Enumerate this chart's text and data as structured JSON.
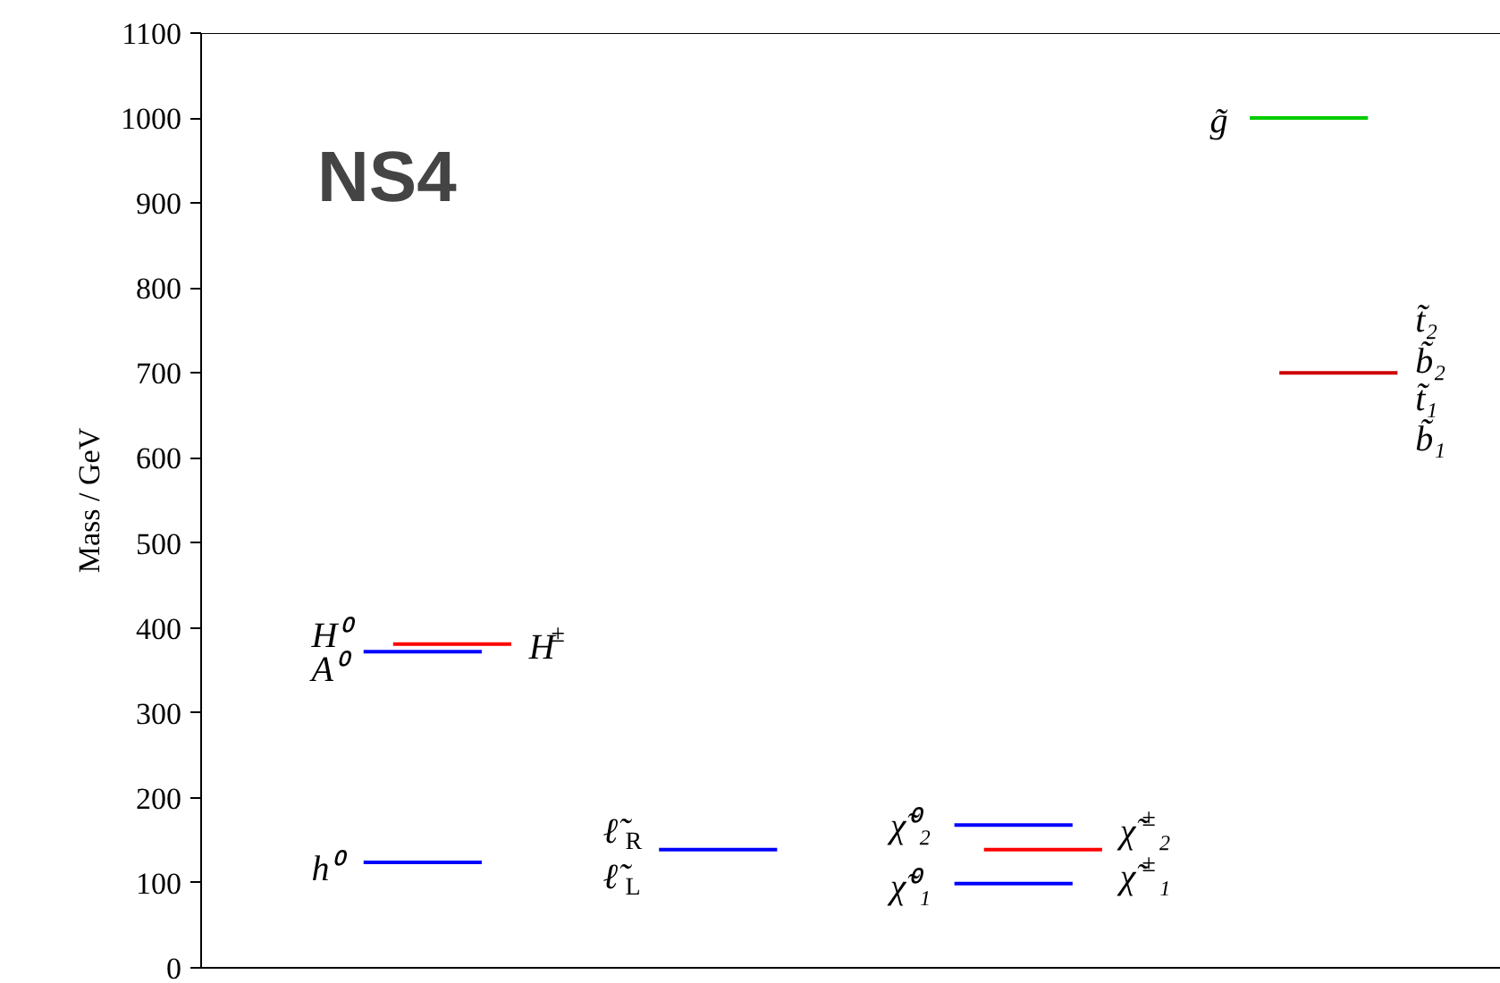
{
  "chart_data": {
    "type": "line",
    "ylabel": "Mass / GeV",
    "ylim": [
      0,
      1100
    ],
    "yticks": [
      0,
      100,
      200,
      300,
      400,
      500,
      600,
      700,
      800,
      900,
      1000,
      1100
    ],
    "grid": false,
    "marker": "none",
    "line_style": "solid",
    "categories": [
      null,
      null,
      null,
      null,
      null,
      null,
      null,
      null,
      null,
      null,
      null,
      null,
      null,
      null,
      null,
      null,
      null,
      null,
      null,
      null,
      null,
      null,
      null,
      null,
      null,
      null,
      null,
      null,
      null,
      null,
      null,
      null,
      null,
      null,
      null,
      null,
      null,
      null,
      null,
      null,
      null,
      null,
      null,
      null
    ],
    "series": [
      {
        "color": "#0000ff",
        "values": [
          null,
          null,
          null,
          null,
          null,
          124,
          124,
          124,
          124,
          124,
          null,
          null,
          null,
          null,
          null,
          null,
          null,
          null,
          null,
          null,
          null,
          null,
          null,
          null,
          null,
          null,
          null,
          null,
          null,
          null,
          null,
          null,
          null,
          null,
          null,
          null,
          null,
          null,
          null,
          null,
          null,
          null,
          null,
          null
        ]
      },
      {
        "color": "#0000ff",
        "values": [
          null,
          null,
          null,
          null,
          null,
          372,
          372,
          372,
          372,
          372,
          null,
          null,
          null,
          null,
          null,
          null,
          null,
          null,
          null,
          null,
          null,
          null,
          null,
          null,
          null,
          null,
          null,
          null,
          null,
          null,
          null,
          null,
          null,
          null,
          null,
          null,
          null,
          null,
          null,
          null,
          null,
          null,
          null,
          null
        ]
      },
      {
        "color": "#ff0000",
        "values": [
          null,
          null,
          null,
          null,
          null,
          null,
          381,
          381,
          381,
          381,
          381,
          null,
          null,
          null,
          null,
          null,
          null,
          null,
          null,
          null,
          null,
          null,
          null,
          null,
          null,
          null,
          null,
          null,
          null,
          null,
          null,
          null,
          null,
          null,
          null,
          null,
          null,
          null,
          null,
          null,
          null,
          null,
          null,
          null
        ]
      },
      {
        "color": "#0000ff",
        "values": [
          null,
          null,
          null,
          null,
          null,
          null,
          null,
          null,
          null,
          null,
          null,
          null,
          null,
          null,
          null,
          139,
          139,
          139,
          139,
          139,
          null,
          null,
          null,
          null,
          null,
          null,
          null,
          null,
          null,
          null,
          null,
          null,
          null,
          null,
          null,
          null,
          null,
          null,
          null,
          null,
          null,
          null,
          null,
          null
        ]
      },
      {
        "color": "#0000ff",
        "values": [
          null,
          null,
          null,
          null,
          null,
          null,
          null,
          null,
          null,
          null,
          null,
          null,
          null,
          null,
          null,
          null,
          null,
          null,
          null,
          null,
          null,
          null,
          null,
          null,
          null,
          168,
          168,
          168,
          168,
          168,
          null,
          null,
          null,
          null,
          null,
          null,
          null,
          null,
          null,
          null,
          null,
          null,
          null,
          null
        ]
      },
      {
        "color": "#0000ff",
        "values": [
          null,
          null,
          null,
          null,
          null,
          null,
          null,
          null,
          null,
          null,
          null,
          null,
          null,
          null,
          null,
          null,
          null,
          null,
          null,
          null,
          null,
          null,
          null,
          null,
          null,
          99,
          99,
          99,
          99,
          99,
          null,
          null,
          null,
          null,
          null,
          null,
          null,
          null,
          null,
          null,
          null,
          null,
          null,
          null
        ]
      },
      {
        "color": "#ff0000",
        "values": [
          null,
          null,
          null,
          null,
          null,
          null,
          null,
          null,
          null,
          null,
          null,
          null,
          null,
          null,
          null,
          null,
          null,
          null,
          null,
          null,
          null,
          null,
          null,
          null,
          null,
          null,
          139,
          139,
          139,
          139,
          139,
          null,
          null,
          null,
          null,
          null,
          null,
          null,
          null,
          null,
          null,
          null,
          null,
          null
        ]
      },
      {
        "color": "#00cc00",
        "values": [
          null,
          null,
          null,
          null,
          null,
          null,
          null,
          null,
          null,
          null,
          null,
          null,
          null,
          null,
          null,
          null,
          null,
          null,
          null,
          null,
          null,
          null,
          null,
          null,
          null,
          null,
          null,
          null,
          null,
          null,
          null,
          null,
          null,
          null,
          null,
          1000,
          1000,
          1000,
          1000,
          1000,
          null,
          null,
          null,
          null
        ]
      },
      {
        "color": "#cc0000",
        "values": [
          null,
          null,
          null,
          null,
          null,
          null,
          null,
          null,
          null,
          null,
          null,
          null,
          null,
          null,
          null,
          null,
          null,
          null,
          null,
          null,
          null,
          null,
          null,
          null,
          null,
          null,
          null,
          null,
          null,
          null,
          null,
          null,
          null,
          null,
          null,
          null,
          700,
          700,
          700,
          700,
          700,
          null,
          null,
          null
        ]
      }
    ],
    "annotations": [
      "NS4",
      "H⁰",
      "A⁰",
      "H$^{±}$",
      "h⁰",
      "ℓ̃$_{R}$",
      "ℓ̃$_{L}$",
      "χ̃⁰₂",
      "χ̃⁰₁",
      "χ̃$^{±}$₂",
      "χ̃$^{±}$₁",
      "g̃",
      "t̃₂",
      "b̃₂",
      "t̃₁",
      "b̃₁"
    ]
  }
}
